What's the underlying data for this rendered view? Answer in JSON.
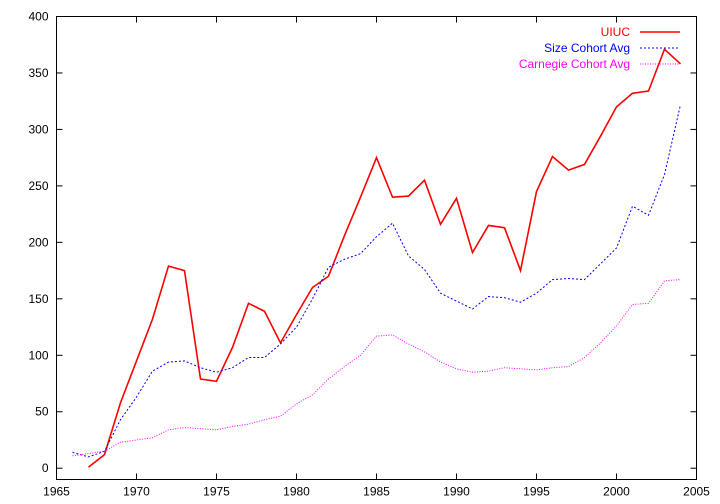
{
  "chart_data": {
    "type": "line",
    "title": "",
    "xlabel": "",
    "ylabel": "",
    "xlim": [
      1965,
      2005
    ],
    "ylim": [
      -10,
      400
    ],
    "xticks": [
      1965,
      1970,
      1975,
      1980,
      1985,
      1990,
      1995,
      2000,
      2005
    ],
    "yticks": [
      0,
      50,
      100,
      150,
      200,
      250,
      300,
      350,
      400
    ],
    "grid": false,
    "legend_position": "top-right",
    "series": [
      {
        "name": "UIUC",
        "color": "#ff0000",
        "style": "solid",
        "x": [
          1967,
          1968,
          1969,
          1970,
          1971,
          1972,
          1973,
          1974,
          1975,
          1976,
          1977,
          1978,
          1979,
          1980,
          1981,
          1982,
          1983,
          1984,
          1985,
          1986,
          1987,
          1988,
          1989,
          1990,
          1991,
          1992,
          1993,
          1994,
          1995,
          1996,
          1997,
          1998,
          1999,
          2000,
          2001,
          2002,
          2003,
          2004
        ],
        "values": [
          1,
          12,
          58,
          95,
          132,
          179,
          175,
          79,
          77,
          107,
          146,
          139,
          111,
          136,
          160,
          170,
          206,
          240,
          275,
          240,
          241,
          255,
          216,
          239,
          191,
          215,
          213,
          175,
          245,
          276,
          264,
          269,
          294,
          320,
          332,
          334,
          371,
          358
        ]
      },
      {
        "name": "Size Cohort Avg",
        "color": "#0000ff",
        "style": "dashed",
        "x": [
          1966,
          1967,
          1968,
          1969,
          1970,
          1971,
          1972,
          1973,
          1974,
          1975,
          1976,
          1977,
          1978,
          1979,
          1980,
          1981,
          1982,
          1983,
          1984,
          1985,
          1986,
          1987,
          1988,
          1989,
          1990,
          1991,
          1992,
          1993,
          1994,
          1995,
          1996,
          1997,
          1998,
          1999,
          2000,
          2001,
          2002,
          2003,
          2004
        ],
        "values": [
          14,
          10,
          15,
          43,
          63,
          86,
          94,
          95,
          89,
          85,
          89,
          98,
          98,
          110,
          125,
          150,
          178,
          185,
          190,
          205,
          217,
          188,
          176,
          155,
          148,
          141,
          152,
          151,
          147,
          155,
          167,
          168,
          167,
          181,
          195,
          232,
          224,
          260,
          322
        ]
      },
      {
        "name": "Carnegie Cohort Avg",
        "color": "#ff00ff",
        "style": "dotted",
        "x": [
          1966,
          1967,
          1968,
          1969,
          1970,
          1971,
          1972,
          1973,
          1974,
          1975,
          1976,
          1977,
          1978,
          1979,
          1980,
          1981,
          1982,
          1983,
          1984,
          1985,
          1986,
          1987,
          1988,
          1989,
          1990,
          1991,
          1992,
          1993,
          1994,
          1995,
          1996,
          1997,
          1998,
          1999,
          2000,
          2001,
          2002,
          2003,
          2004
        ],
        "values": [
          11,
          13,
          15,
          23,
          25,
          27,
          34,
          36,
          35,
          34,
          37,
          39,
          43,
          46,
          57,
          65,
          79,
          90,
          100,
          117,
          118,
          110,
          103,
          94,
          88,
          85,
          86,
          89,
          88,
          87,
          89,
          90,
          98,
          111,
          126,
          145,
          146,
          166,
          167
        ]
      }
    ]
  }
}
